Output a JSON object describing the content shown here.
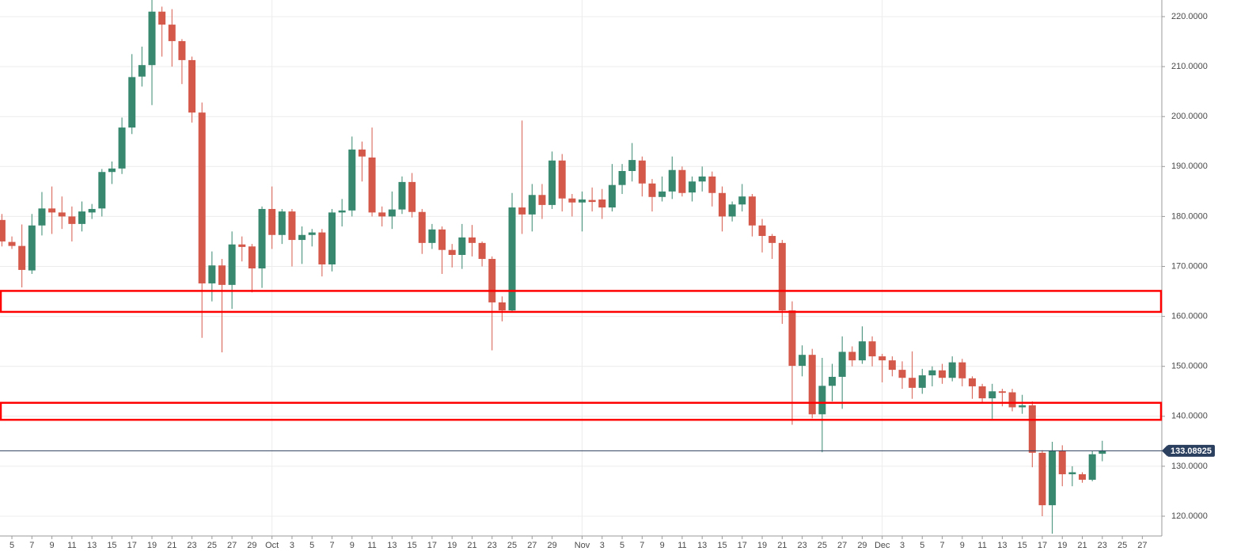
{
  "chart_data": {
    "type": "candlestick",
    "categories": [
      null,
      "5",
      null,
      "7",
      null,
      "9",
      null,
      "11",
      null,
      "13",
      null,
      "15",
      null,
      "17",
      null,
      "19",
      null,
      "21",
      null,
      "23",
      null,
      "25",
      null,
      "27",
      null,
      "29",
      null,
      "Oct",
      null,
      "3",
      null,
      "5",
      null,
      "7",
      null,
      "9",
      null,
      "11",
      null,
      "13",
      null,
      "15",
      null,
      "17",
      null,
      "19",
      null,
      "21",
      null,
      "23",
      null,
      "25",
      null,
      "27",
      null,
      "29",
      null,
      null,
      "Nov",
      null,
      "3",
      null,
      "5",
      null,
      "7",
      null,
      "9",
      null,
      "11",
      null,
      "13",
      null,
      "15",
      null,
      "17",
      null,
      "19",
      null,
      "21",
      null,
      "23",
      null,
      "25",
      null,
      "27",
      null,
      "29",
      null,
      "Dec",
      null,
      "3",
      null,
      "5",
      null,
      "7",
      null,
      "9",
      null,
      "11",
      null,
      "13",
      null,
      "15",
      null,
      "17",
      null,
      "19",
      null,
      "21",
      null,
      "23",
      null,
      "25",
      null,
      "27",
      null
    ],
    "open": [
      179.3,
      174.9,
      174.1,
      169.2,
      178.2,
      181.6,
      180.8,
      180.0,
      178.5,
      180.8,
      181.6,
      188.9,
      189.6,
      197.8,
      208.0,
      210.3,
      221.0,
      218.4,
      215.1,
      211.3,
      200.8,
      166.6,
      170.2,
      166.3,
      174.4,
      174.0,
      169.6,
      181.5,
      176.3,
      181.0,
      175.3,
      176.3,
      176.8,
      170.4,
      180.8,
      181.2,
      193.4,
      191.8,
      180.8,
      180.0,
      181.4,
      186.9,
      180.9,
      174.7,
      177.4,
      173.3,
      172.3,
      175.8,
      174.7,
      171.5,
      162.8,
      161.2,
      181.8,
      180.4,
      184.3,
      182.3,
      191.2,
      183.6,
      182.8,
      183.3,
      183.4,
      181.8,
      186.3,
      189.1,
      191.2,
      186.6,
      183.9,
      185.0,
      189.3,
      184.8,
      187.0,
      188.0,
      184.7,
      180.0,
      182.4,
      184.0,
      178.2,
      176.1,
      174.7,
      161.2,
      150.1,
      152.3,
      140.4,
      146.1,
      147.9,
      152.9,
      151.2,
      155.0,
      152.0,
      151.2,
      149.3,
      147.7,
      145.7,
      148.2,
      149.2,
      147.7,
      150.8,
      147.6,
      146.0,
      143.6,
      145.0,
      144.8,
      141.8,
      142.2,
      132.7,
      122.2,
      133.1,
      128.4,
      128.4,
      127.3,
      132.5,
      null,
      null,
      null,
      null,
      null
    ],
    "high": [
      180.5,
      176,
      178.4,
      180.5,
      184.9,
      186,
      184,
      182,
      183,
      182.5,
      189.5,
      191,
      199.8,
      212.5,
      214,
      223.5,
      222,
      221.5,
      215.5,
      212,
      202.8,
      173,
      171.5,
      177,
      176,
      174.5,
      182,
      186,
      181.5,
      181.5,
      178,
      177.5,
      177.5,
      181.5,
      183.5,
      196,
      195,
      197.8,
      182,
      185,
      188,
      188.7,
      181.5,
      178.5,
      178,
      174.5,
      178.5,
      178.3,
      175,
      172,
      164,
      184.7,
      199.2,
      186.5,
      186.5,
      193,
      192.5,
      184.5,
      185,
      185.8,
      185.5,
      190.5,
      190.5,
      194.7,
      192,
      187.5,
      188,
      192,
      190,
      188,
      190,
      189,
      186,
      183,
      186.5,
      184.5,
      179.5,
      176.5,
      175.3,
      163,
      154.2,
      153.5,
      151.7,
      150.5,
      156,
      154,
      158,
      156,
      152.5,
      152,
      151,
      153,
      149.5,
      150,
      150.5,
      152,
      151.5,
      148,
      146.5,
      146.5,
      145.5,
      145.5,
      144.3,
      143,
      133.2,
      134.9,
      134.2,
      130,
      128.8,
      133,
      135.1,
      null,
      null,
      null,
      null,
      null
    ],
    "low": [
      174,
      173.5,
      165.8,
      168.5,
      176.2,
      176.5,
      177.5,
      175,
      177,
      179.5,
      180,
      186.5,
      188.5,
      196.5,
      206,
      202.3,
      212,
      210,
      206.5,
      198.8,
      155.7,
      163,
      152.8,
      161.5,
      171,
      164.8,
      165.7,
      173.5,
      174.5,
      170,
      170.5,
      174,
      168,
      169,
      178,
      180,
      187,
      180,
      178,
      177.5,
      180.5,
      179.8,
      172.5,
      173.5,
      168.5,
      169.8,
      169.5,
      172,
      170,
      153.2,
      159,
      161,
      176.5,
      177,
      179.5,
      181.5,
      181,
      180,
      177,
      181,
      179.5,
      181,
      184.5,
      187,
      184,
      181,
      183,
      183.5,
      184,
      183,
      185,
      182,
      177,
      179,
      181,
      176,
      172.8,
      171.5,
      158.5,
      138.3,
      148,
      139.6,
      132.8,
      143,
      141.5,
      150,
      150.5,
      150,
      146.8,
      148,
      145.5,
      143.5,
      144.5,
      146,
      146.5,
      147,
      146,
      143.5,
      142.5,
      139.5,
      142,
      141,
      140.5,
      129.8,
      120,
      116.5,
      126,
      126,
      126.7,
      127,
      131,
      null,
      null,
      null,
      null,
      null
    ],
    "close": [
      175.0,
      174.1,
      169.3,
      178.2,
      181.6,
      180.8,
      180.0,
      178.5,
      181.0,
      181.5,
      188.9,
      189.6,
      197.8,
      207.9,
      210.3,
      221.0,
      218.4,
      215.1,
      211.3,
      200.8,
      166.6,
      170.2,
      166.3,
      174.4,
      173.9,
      169.6,
      181.5,
      176.3,
      181.0,
      175.3,
      176.3,
      176.8,
      170.4,
      180.8,
      181.2,
      193.4,
      192.0,
      180.8,
      180.0,
      181.4,
      186.9,
      180.9,
      174.7,
      177.4,
      173.3,
      172.3,
      175.8,
      174.7,
      171.5,
      162.8,
      161.2,
      181.8,
      180.4,
      184.3,
      182.3,
      191.2,
      183.6,
      182.8,
      183.4,
      182.9,
      181.8,
      186.3,
      189.1,
      191.3,
      186.6,
      183.9,
      185.0,
      189.3,
      184.7,
      187.0,
      188.0,
      184.7,
      180.0,
      182.4,
      184.0,
      178.2,
      176.1,
      174.7,
      161.2,
      150.1,
      152.3,
      140.4,
      146.1,
      147.9,
      152.9,
      151.2,
      155.0,
      152.0,
      151.2,
      149.3,
      147.7,
      145.7,
      148.2,
      149.2,
      147.7,
      150.8,
      147.6,
      146.0,
      143.6,
      145.0,
      144.7,
      141.8,
      142.2,
      132.7,
      122.2,
      133.1,
      128.4,
      128.8,
      127.3,
      132.4,
      133.1,
      null,
      null,
      null,
      null,
      null
    ],
    "up_color": "#37886f",
    "down_color": "#d5594b",
    "ylim": [
      116.04,
      223.33
    ],
    "yticks": [
      {
        "value": 120,
        "label": "120.0000"
      },
      {
        "value": 130,
        "label": "130.0000"
      },
      {
        "value": 140,
        "label": "140.0000"
      },
      {
        "value": 150,
        "label": "150.0000"
      },
      {
        "value": 160,
        "label": "160.0000"
      },
      {
        "value": 170,
        "label": "170.0000"
      },
      {
        "value": 180,
        "label": "180.0000"
      },
      {
        "value": 190,
        "label": "190.0000"
      },
      {
        "value": 200,
        "label": "200.0000"
      },
      {
        "value": 210,
        "label": "210.0000"
      },
      {
        "value": 220,
        "label": "220.0000"
      }
    ],
    "grid": true,
    "zones": [
      {
        "low": 160.9,
        "high": 165.1
      },
      {
        "low": 139.3,
        "high": 142.7
      }
    ],
    "zone_color": "#ff0000",
    "last_price": 133.08925,
    "last_price_color": "#2b3f5e"
  }
}
